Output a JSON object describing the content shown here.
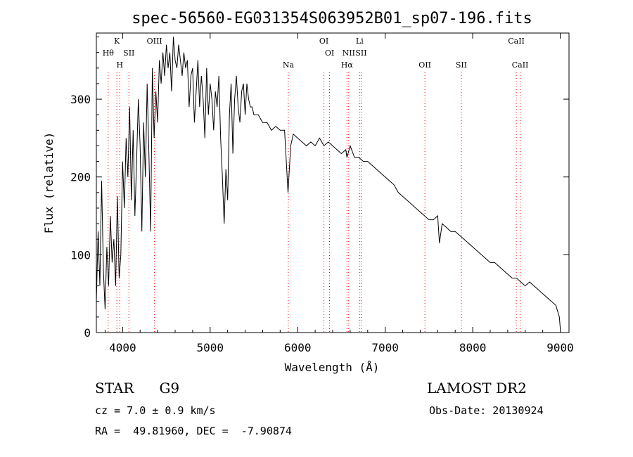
{
  "chart_data": {
    "type": "line",
    "title": "spec-56560-EG031354S063952B01_sp07-196.fits",
    "xlabel": "Wavelength (Å)",
    "ylabel": "Flux (relative)",
    "xlim": [
      3700,
      9100
    ],
    "ylim": [
      0,
      385
    ],
    "xticks": [
      4000,
      5000,
      6000,
      7000,
      8000,
      9000
    ],
    "yticks": [
      0,
      100,
      200,
      300
    ],
    "grid": false,
    "line_color": "#000000",
    "marker_color": "#ff0000",
    "series": [
      {
        "x": [
          3700,
          3720,
          3740,
          3760,
          3780,
          3800,
          3820,
          3840,
          3860,
          3880,
          3900,
          3920,
          3940,
          3960,
          3980,
          4000,
          4020,
          4040,
          4060,
          4080,
          4100,
          4120,
          4140,
          4160,
          4180,
          4200,
          4220,
          4240,
          4260,
          4280,
          4300,
          4320,
          4340,
          4360,
          4380,
          4400,
          4420,
          4440,
          4460,
          4480,
          4500,
          4520,
          4540,
          4560,
          4580,
          4600,
          4620,
          4640,
          4660,
          4680,
          4700,
          4720,
          4740,
          4760,
          4780,
          4800,
          4820,
          4840,
          4860,
          4880,
          4900,
          4920,
          4940,
          4960,
          4980,
          5000,
          5020,
          5040,
          5060,
          5080,
          5100,
          5120,
          5140,
          5160,
          5180,
          5200,
          5220,
          5240,
          5260,
          5280,
          5300,
          5320,
          5340,
          5360,
          5380,
          5400,
          5420,
          5440,
          5460,
          5480,
          5500,
          5550,
          5600,
          5650,
          5700,
          5750,
          5800,
          5850,
          5890,
          5920,
          5950,
          6000,
          6050,
          6100,
          6150,
          6200,
          6250,
          6300,
          6350,
          6400,
          6450,
          6500,
          6550,
          6563,
          6600,
          6650,
          6700,
          6750,
          6800,
          6850,
          6900,
          6950,
          7000,
          7050,
          7100,
          7150,
          7200,
          7250,
          7300,
          7350,
          7400,
          7450,
          7500,
          7550,
          7600,
          7620,
          7650,
          7700,
          7750,
          7800,
          7850,
          7900,
          7950,
          8000,
          8050,
          8100,
          8150,
          8200,
          8250,
          8300,
          8350,
          8400,
          8450,
          8500,
          8550,
          8600,
          8650,
          8700,
          8750,
          8800,
          8850,
          8900,
          8950,
          8990,
          9000
        ],
        "y": [
          40,
          130,
          60,
          195,
          80,
          30,
          110,
          60,
          150,
          90,
          120,
          60,
          175,
          70,
          100,
          220,
          160,
          250,
          200,
          290,
          170,
          260,
          150,
          220,
          300,
          240,
          130,
          270,
          200,
          320,
          230,
          130,
          340,
          250,
          310,
          270,
          350,
          320,
          360,
          330,
          370,
          340,
          360,
          310,
          380,
          350,
          340,
          370,
          350,
          330,
          360,
          340,
          350,
          290,
          330,
          340,
          270,
          310,
          350,
          290,
          330,
          300,
          250,
          340,
          280,
          320,
          300,
          260,
          310,
          290,
          330,
          250,
          200,
          140,
          210,
          170,
          280,
          320,
          230,
          300,
          330,
          290,
          270,
          310,
          320,
          280,
          320,
          300,
          290,
          290,
          280,
          280,
          270,
          270,
          260,
          265,
          260,
          260,
          180,
          240,
          255,
          250,
          245,
          240,
          245,
          240,
          250,
          240,
          245,
          240,
          235,
          230,
          235,
          225,
          240,
          225,
          225,
          220,
          220,
          215,
          210,
          205,
          200,
          195,
          190,
          180,
          175,
          170,
          165,
          160,
          155,
          150,
          145,
          145,
          150,
          115,
          140,
          135,
          130,
          130,
          125,
          120,
          115,
          110,
          105,
          100,
          95,
          90,
          90,
          85,
          80,
          75,
          70,
          70,
          65,
          60,
          65,
          60,
          55,
          50,
          45,
          40,
          35,
          20,
          5
        ]
      }
    ],
    "line_markers": [
      {
        "x": 3835,
        "label": "Hθ",
        "row": 1
      },
      {
        "x": 3934,
        "label": "K",
        "row": 0
      },
      {
        "x": 3968,
        "label": "H",
        "row": 2
      },
      {
        "x": 4072,
        "label": "SII",
        "row": 1
      },
      {
        "x": 4364,
        "label": "OIII",
        "row": 0
      },
      {
        "x": 5893,
        "label": "Na",
        "row": 2
      },
      {
        "x": 6300,
        "label": "OI",
        "row": 0
      },
      {
        "x": 6364,
        "label": "OI",
        "row": 1
      },
      {
        "x": 6563,
        "label": "Hα",
        "row": 2
      },
      {
        "x": 6583,
        "label": "NII",
        "row": 1
      },
      {
        "x": 6708,
        "label": "Li",
        "row": 0
      },
      {
        "x": 6725,
        "label": "SII",
        "row": 1
      },
      {
        "x": 7454,
        "label": "OII",
        "row": 2
      },
      {
        "x": 7870,
        "label": "SII",
        "row": 2
      },
      {
        "x": 8498,
        "label": "CaII",
        "row": 0
      },
      {
        "x": 8542,
        "label": "CaII",
        "row": 2
      }
    ]
  },
  "info": {
    "class": "STAR",
    "subclass": "G9",
    "survey": "LAMOST DR2",
    "cz": "cz = 7.0 ± 0.9 km/s",
    "obs_date": "Obs-Date: 20130924",
    "coords": "RA =  49.81960, DEC =  -7.90874"
  }
}
